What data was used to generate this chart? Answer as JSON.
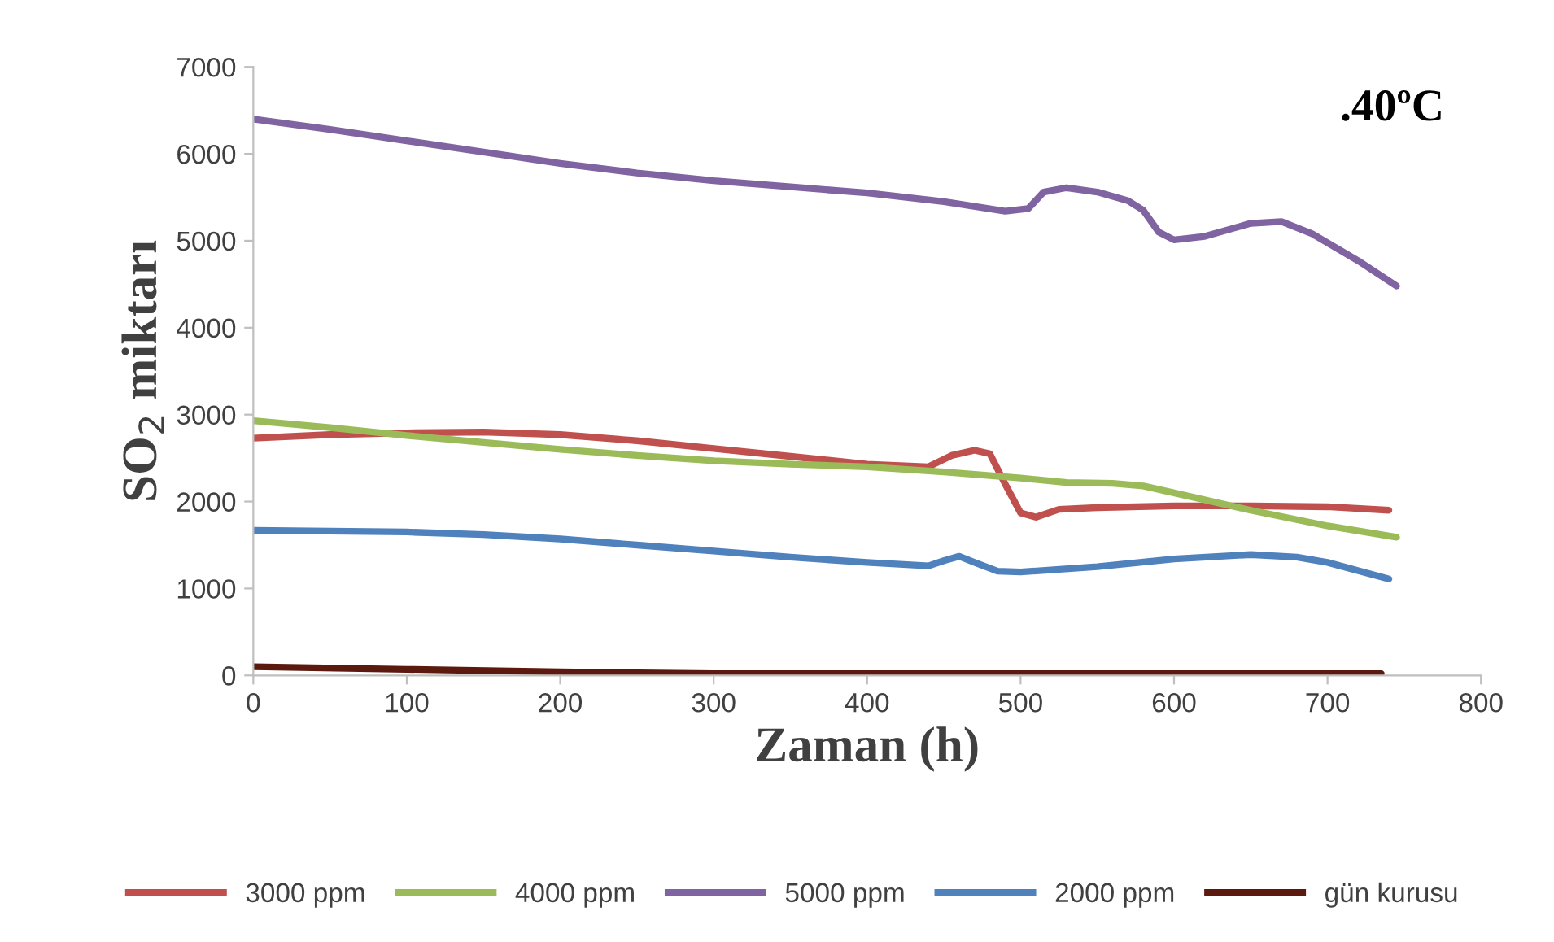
{
  "chart_data": {
    "type": "line",
    "xlabel": "Zaman (h)",
    "ylabel": "SO$_{2}$ miktarı",
    "annotations": [
      ".40ºC"
    ],
    "xlim": [
      0,
      800
    ],
    "xticks": [
      0,
      100,
      200,
      300,
      400,
      500,
      600,
      700,
      800
    ],
    "ylim": [
      0,
      7000
    ],
    "yticks": [
      0,
      1000,
      2000,
      3000,
      4000,
      5000,
      6000,
      7000
    ],
    "grid": false,
    "legend": "bottom",
    "marker": "none",
    "line_style": "solid",
    "series": [
      {
        "name": "3000 ppm",
        "color": "#c0504d",
        "x": [
          0,
          50,
          100,
          150,
          200,
          250,
          300,
          350,
          400,
          440,
          455,
          470,
          480,
          490,
          500,
          510,
          525,
          550,
          600,
          650,
          700,
          740
        ],
        "values": [
          2730,
          2770,
          2790,
          2800,
          2770,
          2700,
          2610,
          2520,
          2430,
          2400,
          2530,
          2590,
          2550,
          2200,
          1870,
          1820,
          1910,
          1930,
          1950,
          1950,
          1940,
          1900
        ]
      },
      {
        "name": "4000 ppm",
        "color": "#9bbb59",
        "x": [
          0,
          50,
          100,
          150,
          200,
          250,
          300,
          350,
          400,
          450,
          500,
          530,
          560,
          580,
          600,
          650,
          700,
          745
        ],
        "values": [
          2930,
          2850,
          2760,
          2680,
          2600,
          2530,
          2470,
          2430,
          2400,
          2340,
          2270,
          2220,
          2210,
          2180,
          2100,
          1900,
          1720,
          1590
        ]
      },
      {
        "name": "5000 ppm",
        "color": "#8064a2",
        "x": [
          0,
          50,
          100,
          150,
          200,
          250,
          300,
          350,
          400,
          450,
          490,
          505,
          515,
          530,
          550,
          570,
          580,
          590,
          600,
          620,
          650,
          670,
          690,
          720,
          745
        ],
        "values": [
          6400,
          6280,
          6150,
          6020,
          5890,
          5780,
          5690,
          5620,
          5550,
          5450,
          5340,
          5370,
          5560,
          5610,
          5560,
          5460,
          5350,
          5100,
          5010,
          5050,
          5200,
          5220,
          5080,
          4770,
          4480
        ]
      },
      {
        "name": "2000 ppm",
        "color": "#4f81bd",
        "x": [
          0,
          100,
          150,
          200,
          250,
          300,
          350,
          400,
          440,
          450,
          460,
          470,
          485,
          500,
          550,
          600,
          650,
          680,
          700,
          740
        ],
        "values": [
          1670,
          1650,
          1620,
          1570,
          1500,
          1430,
          1360,
          1300,
          1260,
          1320,
          1370,
          1300,
          1200,
          1190,
          1250,
          1340,
          1390,
          1360,
          1300,
          1110
        ]
      },
      {
        "name": "gün kurusu",
        "color": "#5c1a0e",
        "x": [
          0,
          100,
          200,
          300,
          400,
          500,
          600,
          735
        ],
        "values": [
          100,
          70,
          40,
          20,
          20,
          20,
          20,
          20
        ]
      }
    ]
  }
}
